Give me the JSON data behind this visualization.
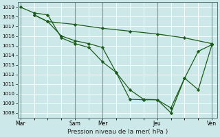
{
  "title": "",
  "xlabel": "Pression niveau de la mer( hPa )",
  "bg_color": "#cde8e8",
  "grid_color": "#b0d0d0",
  "line_color": "#1a5c1a",
  "ylim": [
    1007.5,
    1019.5
  ],
  "yticks": [
    1008,
    1009,
    1010,
    1011,
    1012,
    1013,
    1014,
    1015,
    1016,
    1017,
    1018,
    1019
  ],
  "xtick_labels": [
    "Mar",
    "",
    "Sam",
    "Mer",
    "",
    "Jeu",
    "",
    "Ven"
  ],
  "xtick_positions": [
    0,
    1,
    2,
    3,
    4,
    5,
    6,
    7
  ],
  "vlines": [
    0,
    2,
    3,
    5,
    7
  ],
  "vline_labels": [
    "Mar",
    "Sam",
    "Mer",
    "Jeu",
    "Ven"
  ],
  "xlim": [
    -0.1,
    7.2
  ],
  "line1_x": [
    0,
    0.5,
    1,
    1.5,
    2,
    2.5,
    3,
    3.5,
    4,
    4.5,
    5,
    5.5,
    6,
    6.5,
    7
  ],
  "line1_y": [
    1019,
    1018.4,
    1018.2,
    1015.8,
    1015.2,
    1014.8,
    1013.3,
    1012.2,
    1010.4,
    1009.4,
    1009.35,
    1008.0,
    1011.6,
    1010.4,
    1015.1
  ],
  "line2_x": [
    0.5,
    1,
    1.5,
    2,
    2.5,
    3,
    3.5,
    4,
    4.5,
    5,
    5.5,
    6,
    6.5,
    7
  ],
  "line2_y": [
    1018.2,
    1017.5,
    1016.0,
    1015.5,
    1015.2,
    1014.8,
    1012.2,
    1009.4,
    1009.35,
    1009.35,
    1008.5,
    1011.6,
    1014.4,
    1015.1
  ],
  "line3_x": [
    0.5,
    1,
    2,
    3,
    4,
    5,
    6,
    7
  ],
  "line3_y": [
    1018.2,
    1017.5,
    1017.2,
    1016.8,
    1016.5,
    1016.2,
    1015.8,
    1015.2
  ]
}
